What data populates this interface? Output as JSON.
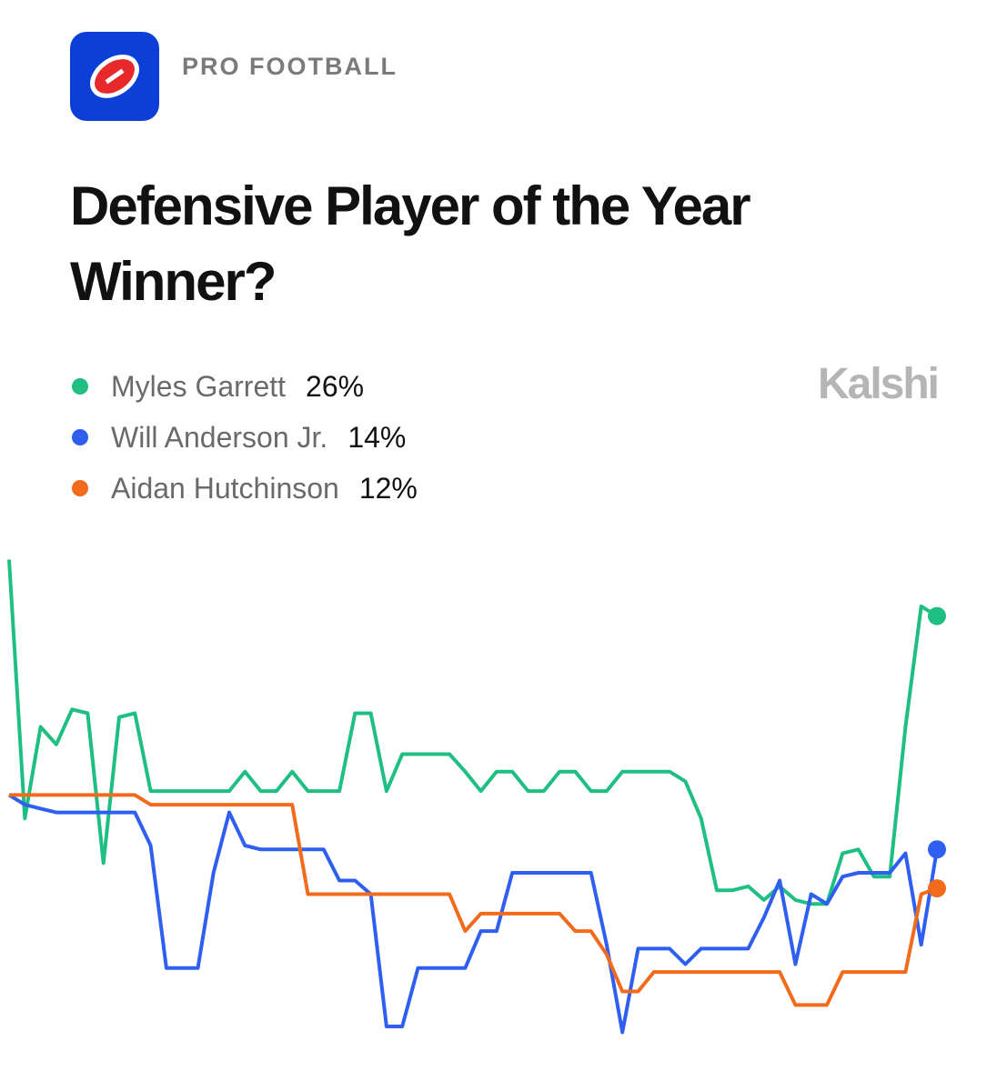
{
  "header": {
    "section": "PRO FOOTBALL",
    "brand": "Kalshi"
  },
  "chart_data": {
    "type": "line",
    "title_lines": [
      "Defensive Player of the Year",
      "Winner?"
    ],
    "categories": [
      null,
      null,
      null,
      null,
      null,
      null,
      null,
      null,
      null,
      null,
      null,
      null,
      null,
      null,
      null,
      null,
      null,
      null,
      null,
      null,
      null,
      null,
      null,
      null,
      null,
      null,
      null,
      null,
      null,
      null,
      null,
      null,
      null,
      null,
      null,
      null,
      null,
      null,
      null,
      null,
      null,
      null,
      null,
      null,
      null,
      null,
      null,
      null,
      null,
      null,
      null,
      null,
      null,
      null,
      null,
      null,
      null,
      null,
      null,
      null
    ],
    "ylim": [
      2,
      30
    ],
    "series": [
      {
        "name": "Myles Garrett",
        "legend_value": "26%",
        "color": "#1fbf84",
        "values": [
          28.9,
          15.6,
          20.3,
          19.4,
          21.2,
          21.0,
          13.3,
          20.8,
          21.0,
          17.0,
          17.0,
          17.0,
          17.0,
          17.0,
          17.0,
          18.0,
          17.0,
          17.0,
          18.0,
          17.0,
          17.0,
          17.0,
          21.0,
          21.0,
          17.0,
          18.9,
          18.9,
          18.9,
          18.9,
          18.0,
          17.0,
          18.0,
          18.0,
          17.0,
          17.0,
          18.0,
          18.0,
          17.0,
          17.0,
          18.0,
          18.0,
          18.0,
          18.0,
          17.5,
          15.6,
          11.9,
          11.9,
          12.1,
          11.4,
          12.1,
          11.4,
          11.2,
          11.2,
          13.8,
          14.0,
          12.6,
          12.6,
          20.3,
          26.5,
          26
        ]
      },
      {
        "name": "Will Anderson Jr.",
        "legend_value": "14%",
        "color": "#2f5ff0",
        "values": [
          16.8,
          16.3,
          16.1,
          15.9,
          15.9,
          15.9,
          15.9,
          15.9,
          15.9,
          14.2,
          7.9,
          7.9,
          7.9,
          12.8,
          15.9,
          14.2,
          14.0,
          14.0,
          14.0,
          14.0,
          14.0,
          12.4,
          12.4,
          11.7,
          4.9,
          4.9,
          7.9,
          7.9,
          7.9,
          7.9,
          9.8,
          9.8,
          12.8,
          12.8,
          12.8,
          12.8,
          12.8,
          12.8,
          9.1,
          4.6,
          8.9,
          8.9,
          8.9,
          8.1,
          8.9,
          8.9,
          8.9,
          8.9,
          10.5,
          12.4,
          8.1,
          11.7,
          11.2,
          12.6,
          12.8,
          12.8,
          12.8,
          13.8,
          9.1,
          14
        ]
      },
      {
        "name": "Aidan Hutchinson",
        "legend_value": "12%",
        "color": "#f26b1d",
        "values": [
          16.8,
          16.8,
          16.8,
          16.8,
          16.8,
          16.8,
          16.8,
          16.8,
          16.8,
          16.3,
          16.3,
          16.3,
          16.3,
          16.3,
          16.3,
          16.3,
          16.3,
          16.3,
          16.3,
          11.7,
          11.7,
          11.7,
          11.7,
          11.7,
          11.7,
          11.7,
          11.7,
          11.7,
          11.7,
          9.8,
          10.7,
          10.7,
          10.7,
          10.7,
          10.7,
          10.7,
          9.8,
          9.8,
          8.6,
          6.7,
          6.7,
          7.7,
          7.7,
          7.7,
          7.7,
          7.7,
          7.7,
          7.7,
          7.7,
          7.7,
          6.0,
          6.0,
          6.0,
          7.7,
          7.7,
          7.7,
          7.7,
          7.7,
          11.7,
          12
        ]
      }
    ]
  }
}
